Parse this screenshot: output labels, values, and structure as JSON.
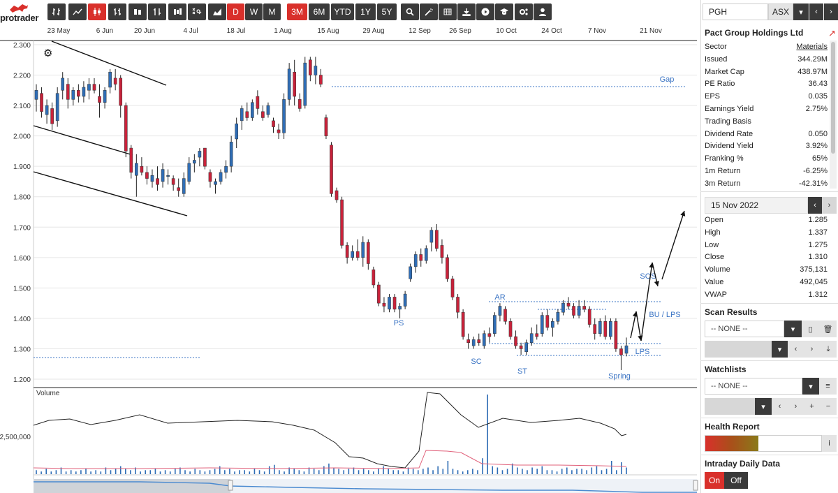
{
  "brand": {
    "name": "protrader",
    "accent": "#d9302b"
  },
  "toolbar": {
    "chart_type_icons": [
      "candlestick-adjust-icon",
      "line-chart-icon",
      "candlestick-icon",
      "ohlc-bar-icon",
      "hollow-candle-icon",
      "bar-chart-icon",
      "heikin-ashi-icon",
      "point-figure-icon",
      "area-chart-icon"
    ],
    "periods": [
      {
        "label": "D",
        "active": true
      },
      {
        "label": "W",
        "active": false
      },
      {
        "label": "M",
        "active": false
      }
    ],
    "ranges": [
      {
        "label": "3M",
        "active": true
      },
      {
        "label": "6M",
        "active": false
      },
      {
        "label": "YTD",
        "active": false
      },
      {
        "label": "1Y",
        "active": false
      },
      {
        "label": "5Y",
        "active": false
      }
    ],
    "tool_icons": [
      "search-icon",
      "magic-wand-icon",
      "table-icon",
      "download-icon",
      "play-icon",
      "education-icon",
      "settings-icon",
      "user-icon"
    ]
  },
  "chart_data": {
    "type": "candlestick",
    "x_ticks": [
      "23 May",
      "6 Jun",
      "20 Jun",
      "4 Jul",
      "18 Jul",
      "1 Aug",
      "15 Aug",
      "29 Aug",
      "12 Sep",
      "26 Sep",
      "10 Oct",
      "24 Oct",
      "7 Nov",
      "21 Nov"
    ],
    "y_ticks": [
      "2.300",
      "2.200",
      "2.100",
      "2.000",
      "1.900",
      "1.800",
      "1.700",
      "1.600",
      "1.500",
      "1.400",
      "1.300",
      "1.200"
    ],
    "ylim": [
      1.2,
      2.3
    ],
    "colors": {
      "up": "#2f6db5",
      "down": "#c8223a",
      "annotation": "#3b74c4"
    },
    "annotations": [
      "Gap",
      "AR",
      "PS",
      "SC",
      "ST",
      "SOS",
      "BU / LPS",
      "LPS",
      "Spring"
    ],
    "volume_label": "Volume",
    "volume_tick": "2,500,000",
    "candles": [
      {
        "o": 2.12,
        "h": 2.17,
        "l": 2.08,
        "c": 2.15
      },
      {
        "o": 2.14,
        "h": 2.16,
        "l": 2.06,
        "c": 2.08
      },
      {
        "o": 2.07,
        "h": 2.12,
        "l": 2.04,
        "c": 2.1
      },
      {
        "o": 2.09,
        "h": 2.11,
        "l": 2.02,
        "c": 2.04
      },
      {
        "o": 2.05,
        "h": 2.16,
        "l": 2.03,
        "c": 2.14
      },
      {
        "o": 2.15,
        "h": 2.21,
        "l": 2.12,
        "c": 2.19
      },
      {
        "o": 2.17,
        "h": 2.19,
        "l": 2.09,
        "c": 2.12
      },
      {
        "o": 2.12,
        "h": 2.16,
        "l": 2.1,
        "c": 2.15
      },
      {
        "o": 2.15,
        "h": 2.17,
        "l": 2.11,
        "c": 2.13
      },
      {
        "o": 2.13,
        "h": 2.18,
        "l": 2.11,
        "c": 2.16
      },
      {
        "o": 2.15,
        "h": 2.19,
        "l": 2.12,
        "c": 2.17
      },
      {
        "o": 2.17,
        "h": 2.19,
        "l": 2.14,
        "c": 2.15
      },
      {
        "o": 2.13,
        "h": 2.17,
        "l": 2.06,
        "c": 2.11
      },
      {
        "o": 2.11,
        "h": 2.16,
        "l": 2.09,
        "c": 2.15
      },
      {
        "o": 2.16,
        "h": 2.22,
        "l": 2.14,
        "c": 2.21
      },
      {
        "o": 2.19,
        "h": 2.22,
        "l": 2.15,
        "c": 2.17
      },
      {
        "o": 2.19,
        "h": 2.2,
        "l": 2.06,
        "c": 2.1
      },
      {
        "o": 2.1,
        "h": 2.11,
        "l": 1.93,
        "c": 1.95
      },
      {
        "o": 1.96,
        "h": 1.97,
        "l": 1.86,
        "c": 1.88
      },
      {
        "o": 1.87,
        "h": 1.94,
        "l": 1.8,
        "c": 1.91
      },
      {
        "o": 1.9,
        "h": 1.93,
        "l": 1.87,
        "c": 1.88
      },
      {
        "o": 1.88,
        "h": 1.9,
        "l": 1.84,
        "c": 1.86
      },
      {
        "o": 1.85,
        "h": 1.89,
        "l": 1.83,
        "c": 1.87
      },
      {
        "o": 1.86,
        "h": 1.9,
        "l": 1.82,
        "c": 1.84
      },
      {
        "o": 1.85,
        "h": 1.91,
        "l": 1.83,
        "c": 1.89
      },
      {
        "o": 1.87,
        "h": 1.89,
        "l": 1.84,
        "c": 1.87
      },
      {
        "o": 1.86,
        "h": 1.87,
        "l": 1.82,
        "c": 1.84
      },
      {
        "o": 1.83,
        "h": 1.86,
        "l": 1.8,
        "c": 1.82
      },
      {
        "o": 1.81,
        "h": 1.88,
        "l": 1.8,
        "c": 1.86
      },
      {
        "o": 1.85,
        "h": 1.93,
        "l": 1.84,
        "c": 1.91
      },
      {
        "o": 1.91,
        "h": 1.94,
        "l": 1.88,
        "c": 1.92
      },
      {
        "o": 1.93,
        "h": 1.96,
        "l": 1.9,
        "c": 1.95
      },
      {
        "o": 1.96,
        "h": 1.96,
        "l": 1.89,
        "c": 1.9
      },
      {
        "o": 1.88,
        "h": 1.89,
        "l": 1.83,
        "c": 1.85
      },
      {
        "o": 1.84,
        "h": 1.86,
        "l": 1.81,
        "c": 1.85
      },
      {
        "o": 1.85,
        "h": 1.89,
        "l": 1.84,
        "c": 1.88
      },
      {
        "o": 1.88,
        "h": 1.92,
        "l": 1.86,
        "c": 1.9
      },
      {
        "o": 1.9,
        "h": 2.0,
        "l": 1.88,
        "c": 1.98
      },
      {
        "o": 1.99,
        "h": 2.06,
        "l": 1.96,
        "c": 2.04
      },
      {
        "o": 2.05,
        "h": 2.1,
        "l": 2.02,
        "c": 2.09
      },
      {
        "o": 2.08,
        "h": 2.11,
        "l": 2.05,
        "c": 2.06
      },
      {
        "o": 2.06,
        "h": 2.12,
        "l": 2.05,
        "c": 2.11
      },
      {
        "o": 2.13,
        "h": 2.15,
        "l": 2.07,
        "c": 2.09
      },
      {
        "o": 2.08,
        "h": 2.1,
        "l": 2.05,
        "c": 2.06
      },
      {
        "o": 2.07,
        "h": 2.11,
        "l": 2.06,
        "c": 2.1
      },
      {
        "o": 2.05,
        "h": 2.06,
        "l": 2.01,
        "c": 2.03
      },
      {
        "o": 2.02,
        "h": 2.04,
        "l": 1.99,
        "c": 2.01
      },
      {
        "o": 2.01,
        "h": 2.14,
        "l": 1.99,
        "c": 2.12
      },
      {
        "o": 2.12,
        "h": 2.24,
        "l": 2.1,
        "c": 2.22
      },
      {
        "o": 2.21,
        "h": 2.25,
        "l": 2.1,
        "c": 2.13
      },
      {
        "o": 2.12,
        "h": 2.14,
        "l": 2.08,
        "c": 2.09
      },
      {
        "o": 2.1,
        "h": 2.26,
        "l": 2.09,
        "c": 2.24
      },
      {
        "o": 2.25,
        "h": 2.26,
        "l": 2.18,
        "c": 2.2
      },
      {
        "o": 2.2,
        "h": 2.26,
        "l": 2.17,
        "c": 2.23
      },
      {
        "o": 2.2,
        "h": 2.22,
        "l": 2.16,
        "c": 2.17
      },
      {
        "o": 2.06,
        "h": 2.07,
        "l": 1.99,
        "c": 2.0
      },
      {
        "o": 1.97,
        "h": 1.98,
        "l": 1.8,
        "c": 1.81
      },
      {
        "o": 1.82,
        "h": 1.83,
        "l": 1.78,
        "c": 1.79
      },
      {
        "o": 1.79,
        "h": 1.8,
        "l": 1.63,
        "c": 1.64
      },
      {
        "o": 1.64,
        "h": 1.65,
        "l": 1.58,
        "c": 1.6
      },
      {
        "o": 1.6,
        "h": 1.64,
        "l": 1.59,
        "c": 1.62
      },
      {
        "o": 1.62,
        "h": 1.66,
        "l": 1.59,
        "c": 1.6
      },
      {
        "o": 1.6,
        "h": 1.67,
        "l": 1.57,
        "c": 1.65
      },
      {
        "o": 1.65,
        "h": 1.66,
        "l": 1.56,
        "c": 1.58
      },
      {
        "o": 1.56,
        "h": 1.57,
        "l": 1.5,
        "c": 1.51
      },
      {
        "o": 1.51,
        "h": 1.52,
        "l": 1.44,
        "c": 1.45
      },
      {
        "o": 1.45,
        "h": 1.47,
        "l": 1.42,
        "c": 1.44
      },
      {
        "o": 1.43,
        "h": 1.48,
        "l": 1.42,
        "c": 1.47
      },
      {
        "o": 1.47,
        "h": 1.48,
        "l": 1.42,
        "c": 1.43
      },
      {
        "o": 1.43,
        "h": 1.45,
        "l": 1.4,
        "c": 1.44
      },
      {
        "o": 1.44,
        "h": 1.49,
        "l": 1.43,
        "c": 1.48
      },
      {
        "o": 1.53,
        "h": 1.58,
        "l": 1.52,
        "c": 1.57
      },
      {
        "o": 1.57,
        "h": 1.62,
        "l": 1.55,
        "c": 1.61
      },
      {
        "o": 1.61,
        "h": 1.63,
        "l": 1.57,
        "c": 1.59
      },
      {
        "o": 1.59,
        "h": 1.64,
        "l": 1.58,
        "c": 1.63
      },
      {
        "o": 1.65,
        "h": 1.7,
        "l": 1.62,
        "c": 1.69
      },
      {
        "o": 1.69,
        "h": 1.71,
        "l": 1.62,
        "c": 1.63
      },
      {
        "o": 1.64,
        "h": 1.66,
        "l": 1.58,
        "c": 1.6
      },
      {
        "o": 1.6,
        "h": 1.61,
        "l": 1.52,
        "c": 1.53
      },
      {
        "o": 1.53,
        "h": 1.54,
        "l": 1.46,
        "c": 1.47
      },
      {
        "o": 1.47,
        "h": 1.48,
        "l": 1.4,
        "c": 1.42
      },
      {
        "o": 1.42,
        "h": 1.43,
        "l": 1.33,
        "c": 1.34
      },
      {
        "o": 1.33,
        "h": 1.35,
        "l": 1.3,
        "c": 1.32
      },
      {
        "o": 1.31,
        "h": 1.34,
        "l": 1.3,
        "c": 1.33
      },
      {
        "o": 1.33,
        "h": 1.35,
        "l": 1.31,
        "c": 1.32
      },
      {
        "o": 1.31,
        "h": 1.36,
        "l": 1.3,
        "c": 1.35
      },
      {
        "o": 1.35,
        "h": 1.37,
        "l": 1.32,
        "c": 1.34
      },
      {
        "o": 1.35,
        "h": 1.42,
        "l": 1.34,
        "c": 1.41
      },
      {
        "o": 1.41,
        "h": 1.45,
        "l": 1.39,
        "c": 1.44
      },
      {
        "o": 1.43,
        "h": 1.44,
        "l": 1.38,
        "c": 1.39
      },
      {
        "o": 1.39,
        "h": 1.4,
        "l": 1.33,
        "c": 1.34
      },
      {
        "o": 1.34,
        "h": 1.36,
        "l": 1.3,
        "c": 1.31
      },
      {
        "o": 1.31,
        "h": 1.32,
        "l": 1.28,
        "c": 1.3
      },
      {
        "o": 1.29,
        "h": 1.33,
        "l": 1.28,
        "c": 1.32
      },
      {
        "o": 1.32,
        "h": 1.37,
        "l": 1.31,
        "c": 1.35
      },
      {
        "o": 1.35,
        "h": 1.38,
        "l": 1.33,
        "c": 1.34
      },
      {
        "o": 1.35,
        "h": 1.42,
        "l": 1.34,
        "c": 1.41
      },
      {
        "o": 1.41,
        "h": 1.43,
        "l": 1.36,
        "c": 1.37
      },
      {
        "o": 1.37,
        "h": 1.4,
        "l": 1.34,
        "c": 1.39
      },
      {
        "o": 1.39,
        "h": 1.43,
        "l": 1.38,
        "c": 1.42
      },
      {
        "o": 1.42,
        "h": 1.46,
        "l": 1.41,
        "c": 1.45
      },
      {
        "o": 1.45,
        "h": 1.47,
        "l": 1.43,
        "c": 1.44
      },
      {
        "o": 1.44,
        "h": 1.45,
        "l": 1.4,
        "c": 1.41
      },
      {
        "o": 1.41,
        "h": 1.46,
        "l": 1.4,
        "c": 1.44
      },
      {
        "o": 1.44,
        "h": 1.46,
        "l": 1.42,
        "c": 1.43
      },
      {
        "o": 1.43,
        "h": 1.44,
        "l": 1.37,
        "c": 1.38
      },
      {
        "o": 1.38,
        "h": 1.4,
        "l": 1.33,
        "c": 1.35
      },
      {
        "o": 1.35,
        "h": 1.4,
        "l": 1.34,
        "c": 1.39
      },
      {
        "o": 1.39,
        "h": 1.41,
        "l": 1.33,
        "c": 1.34
      },
      {
        "o": 1.34,
        "h": 1.4,
        "l": 1.33,
        "c": 1.39
      },
      {
        "o": 1.39,
        "h": 1.4,
        "l": 1.29,
        "c": 1.3
      },
      {
        "o": 1.3,
        "h": 1.31,
        "l": 1.23,
        "c": 1.28
      },
      {
        "o": 1.285,
        "h": 1.337,
        "l": 1.275,
        "c": 1.31
      }
    ],
    "volume_bars": [
      3,
      2,
      4,
      2,
      3,
      5,
      2,
      3,
      2,
      3,
      4,
      2,
      3,
      2,
      5,
      3,
      4,
      6,
      4,
      3,
      5,
      2,
      3,
      3,
      4,
      2,
      3,
      2,
      4,
      5,
      3,
      2,
      4,
      3,
      2,
      3,
      4,
      6,
      3,
      4,
      2,
      3,
      3,
      2,
      4,
      3,
      2,
      6,
      7,
      3,
      2,
      5,
      4,
      3,
      2,
      5,
      4,
      3,
      6,
      8,
      5,
      4,
      3,
      4,
      5,
      3,
      4,
      3,
      2,
      4,
      6,
      4,
      3,
      3,
      2,
      5,
      4,
      3,
      4,
      5,
      3,
      6,
      4,
      10,
      4,
      3,
      2,
      3,
      4,
      3,
      12,
      60,
      6,
      5,
      3,
      4,
      8,
      5,
      4,
      3,
      5,
      4,
      6,
      3,
      3,
      2,
      4,
      5,
      3,
      4,
      4,
      3,
      5,
      6,
      3,
      4,
      10,
      3,
      9,
      5
    ]
  },
  "panel": {
    "code": "PGH",
    "exchange": "ASX",
    "company": "Pact Group Holdings Ltd",
    "fundamentals": [
      {
        "k": "Sector",
        "v": "Materials",
        "link": true
      },
      {
        "k": "Issued",
        "v": "344.29M"
      },
      {
        "k": "Market Cap",
        "v": "438.97M"
      },
      {
        "k": "PE Ratio",
        "v": "36.43"
      },
      {
        "k": "EPS",
        "v": "0.035"
      },
      {
        "k": "Earnings Yield",
        "v": "2.75%"
      },
      {
        "k": "Trading Basis",
        "v": ""
      },
      {
        "k": "Dividend Rate",
        "v": "0.050"
      },
      {
        "k": "Dividend Yield",
        "v": "3.92%"
      },
      {
        "k": "Franking %",
        "v": "65%"
      },
      {
        "k": "1m Return",
        "v": "-6.25%"
      },
      {
        "k": "3m Return",
        "v": "-42.31%"
      }
    ],
    "date": "15 Nov 2022",
    "ohlc": [
      {
        "k": "Open",
        "v": "1.285"
      },
      {
        "k": "High",
        "v": "1.337"
      },
      {
        "k": "Low",
        "v": "1.275"
      },
      {
        "k": "Close",
        "v": "1.310"
      },
      {
        "k": "Volume",
        "v": "375,131"
      },
      {
        "k": "Value",
        "v": "492,045"
      },
      {
        "k": "VWAP",
        "v": "1.312"
      }
    ],
    "scan_title": "Scan Results",
    "scan_select": "-- NONE --",
    "watch_title": "Watchlists",
    "watch_select": "-- NONE --",
    "health_title": "Health Report",
    "health_level": 0.46,
    "intraday_title": "Intraday Daily Data",
    "on_label": "On",
    "off_label": "Off"
  }
}
